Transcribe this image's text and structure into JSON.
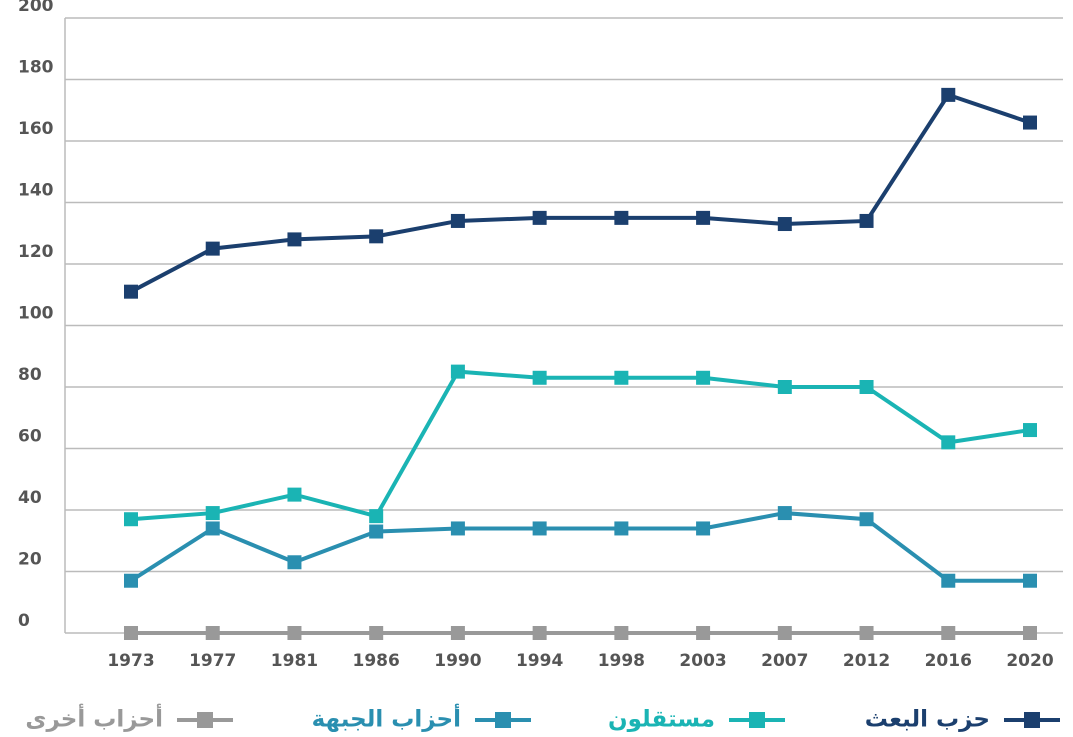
{
  "chart_data": {
    "type": "line",
    "categories": [
      "1973",
      "1977",
      "1981",
      "1986",
      "1990",
      "1994",
      "1998",
      "2003",
      "2007",
      "2012",
      "2016",
      "2020"
    ],
    "series": [
      {
        "name": "حزب البعث",
        "color": "#1b3f6e",
        "values": [
          111,
          125,
          128,
          129,
          134,
          135,
          135,
          135,
          133,
          134,
          175,
          166
        ]
      },
      {
        "name": "مستقلون",
        "color": "#1ab4b4",
        "values": [
          37,
          39,
          45,
          38,
          85,
          83,
          83,
          83,
          80,
          80,
          62,
          66
        ]
      },
      {
        "name": "أحزاب الجبهة",
        "color": "#2a8fb0",
        "values": [
          17,
          34,
          23,
          33,
          34,
          34,
          34,
          34,
          39,
          37,
          17,
          17
        ]
      },
      {
        "name": "أحزاب أخرى",
        "color": "#999999",
        "values": [
          0,
          0,
          0,
          0,
          0,
          0,
          0,
          0,
          0,
          0,
          0,
          0
        ]
      }
    ],
    "ylim": [
      0,
      200
    ],
    "yticks": [
      0,
      20,
      40,
      60,
      80,
      100,
      120,
      140,
      160,
      180,
      200
    ],
    "grid": true
  }
}
